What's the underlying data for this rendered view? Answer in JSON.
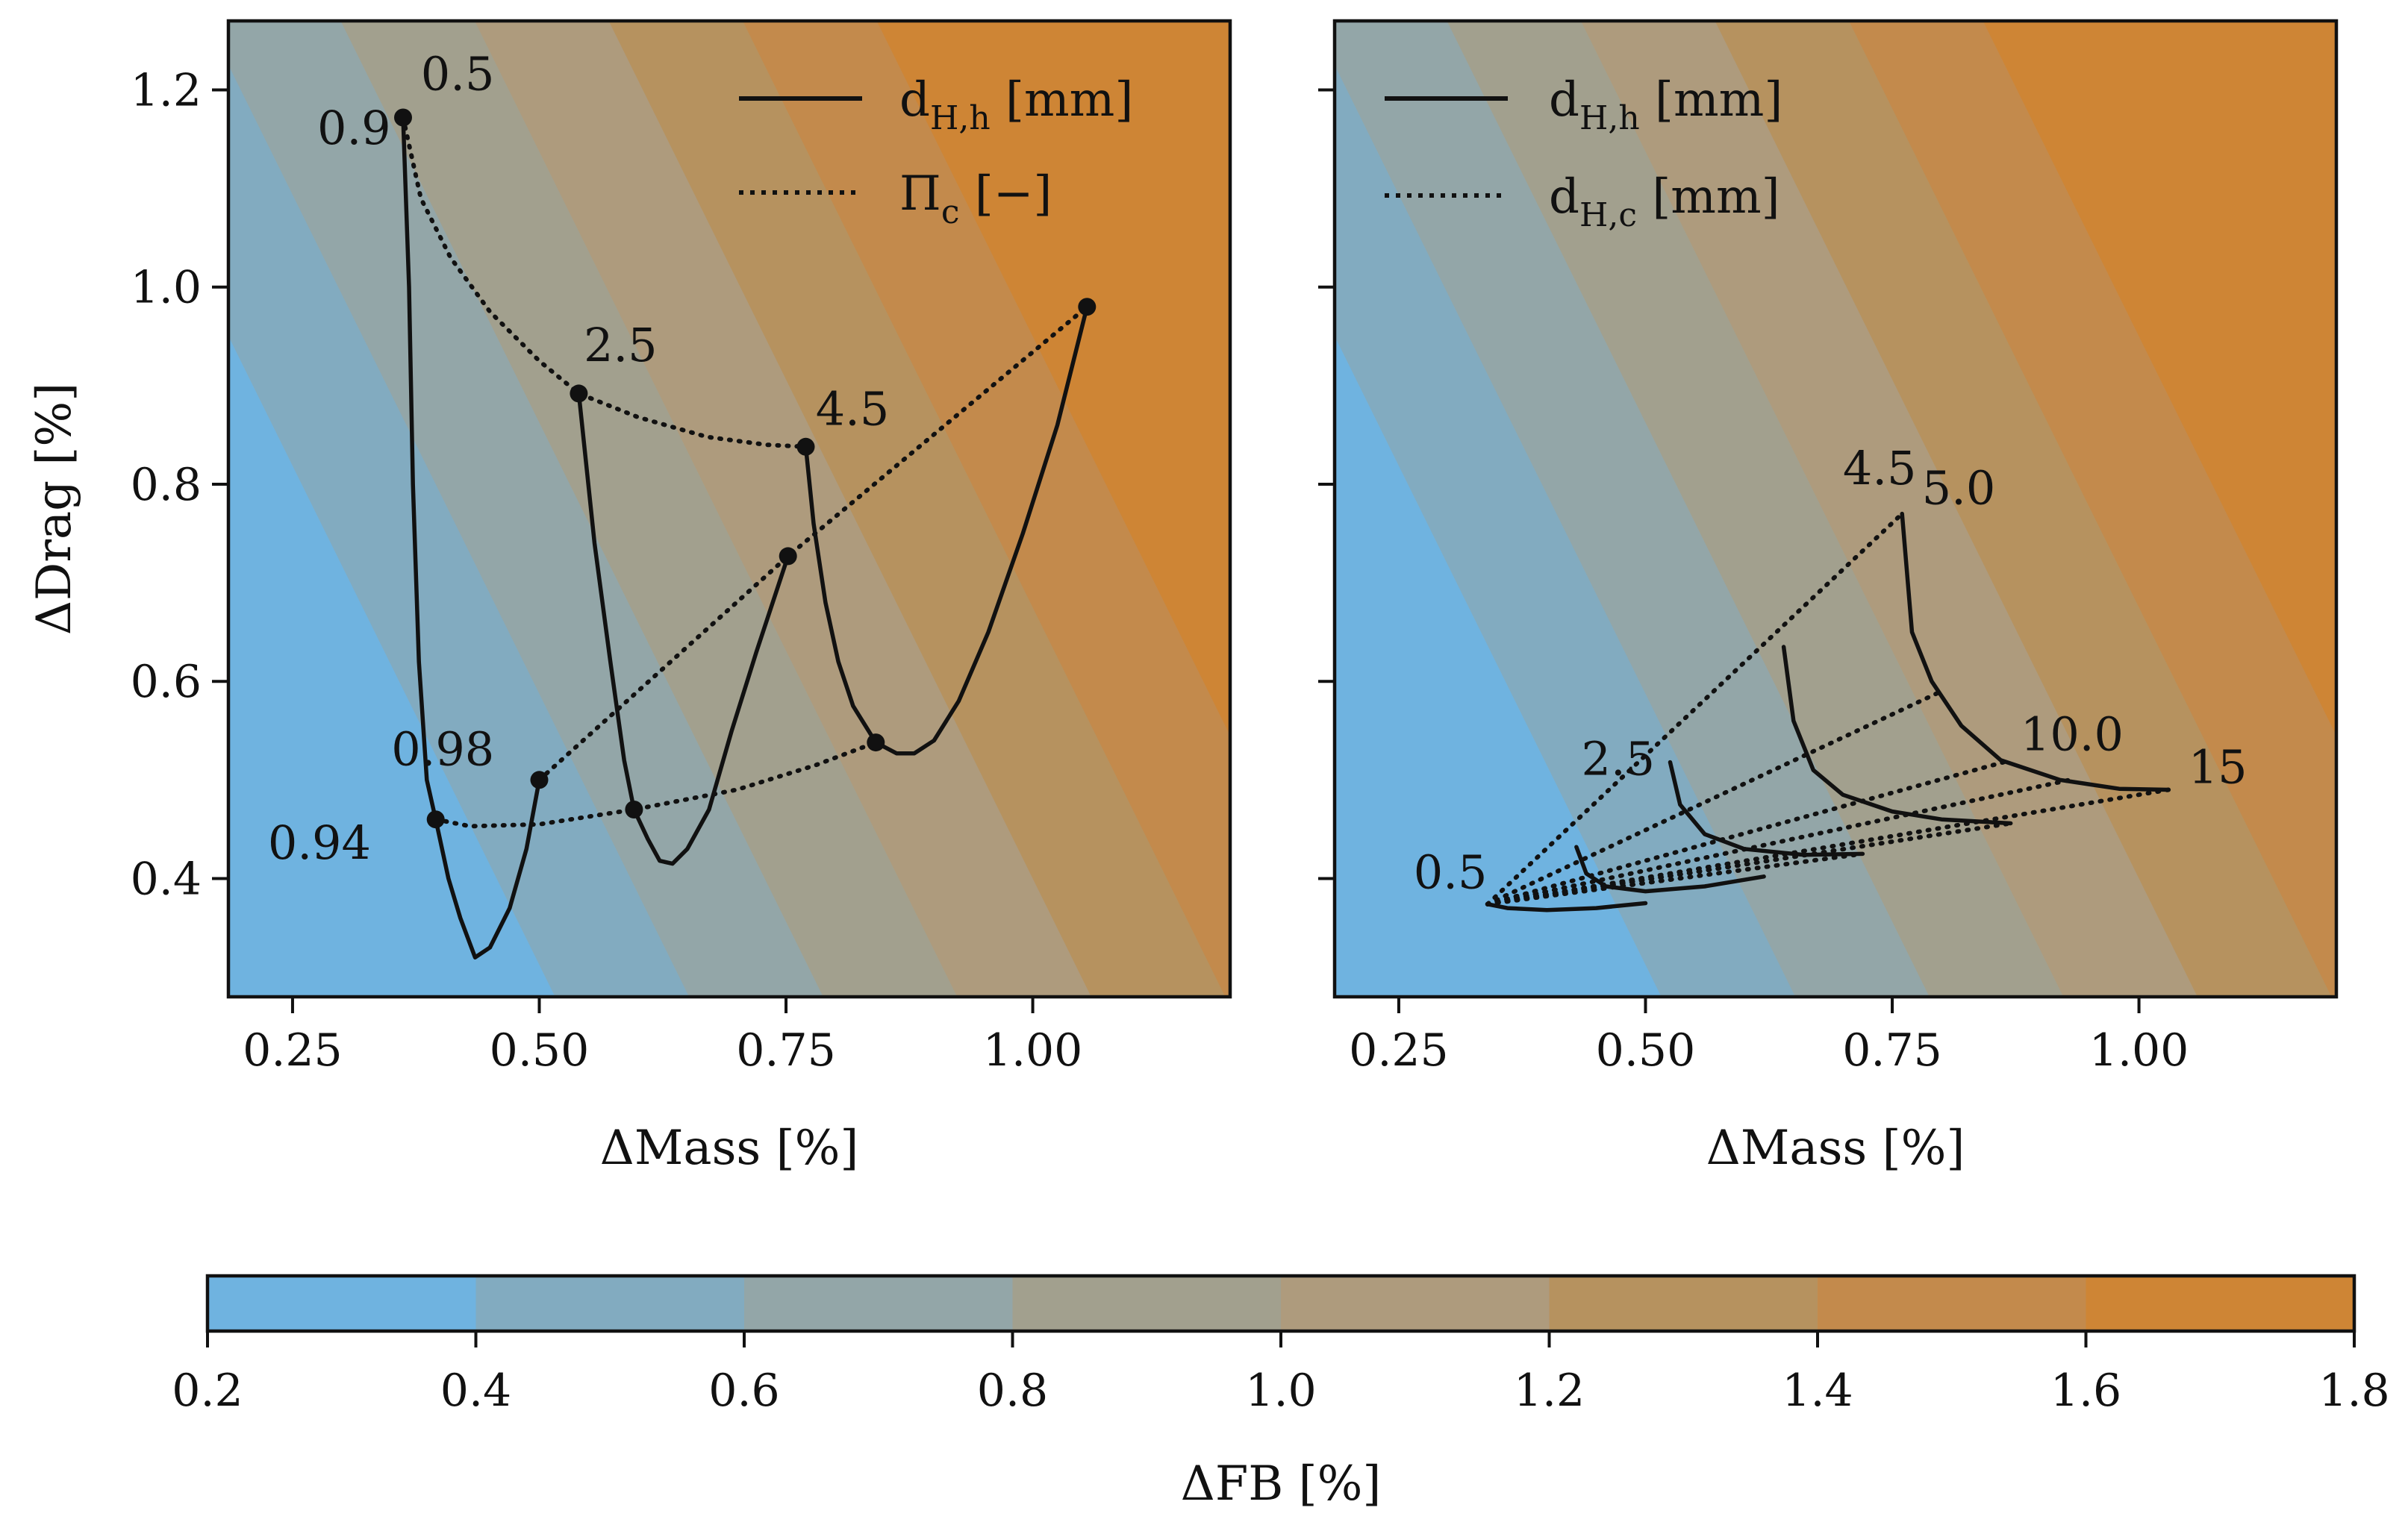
{
  "chart_data": [
    {
      "type": "contour-line",
      "panel": "left",
      "xlabel": "ΔMass [%]",
      "ylabel": "ΔDrag [%]",
      "xlim": [
        0.185,
        1.2
      ],
      "ylim": [
        0.28,
        1.27
      ],
      "xticks": [
        0.25,
        0.5,
        0.75,
        1.0
      ],
      "xtick_labels": [
        "0.25",
        "0.50",
        "0.75",
        "1.00"
      ],
      "yticks": [
        0.4,
        0.6,
        0.8,
        1.0,
        1.2
      ],
      "ytick_labels": [
        "0.4",
        "0.6",
        "0.8",
        "1.0",
        "1.2"
      ],
      "legend": {
        "position": "top-right",
        "entries": [
          {
            "style": "solid",
            "main": "d",
            "sub": "H,h",
            "unit": " [mm]"
          },
          {
            "style": "dotted",
            "main": "Π",
            "sub": "c",
            "unit": " [−]"
          }
        ]
      },
      "background_field": {
        "name": "ΔFB [%]",
        "model": "FB = 1.4727*ΔMass + 0.7273*ΔDrag - 0.5636"
      },
      "series": [
        {
          "style": "solid",
          "points": [
            [
              0.362,
              1.172
            ],
            [
              0.368,
              1.0
            ],
            [
              0.372,
              0.8
            ],
            [
              0.378,
              0.62
            ],
            [
              0.386,
              0.5
            ],
            [
              0.395,
              0.46
            ],
            [
              0.408,
              0.4
            ],
            [
              0.42,
              0.36
            ],
            [
              0.435,
              0.32
            ],
            [
              0.45,
              0.33
            ],
            [
              0.47,
              0.37
            ],
            [
              0.487,
              0.43
            ],
            [
              0.5,
              0.5
            ]
          ]
        },
        {
          "style": "solid",
          "points": [
            [
              0.54,
              0.892
            ],
            [
              0.556,
              0.74
            ],
            [
              0.572,
              0.62
            ],
            [
              0.586,
              0.52
            ],
            [
              0.596,
              0.47
            ],
            [
              0.61,
              0.44
            ],
            [
              0.622,
              0.418
            ],
            [
              0.635,
              0.415
            ],
            [
              0.65,
              0.43
            ],
            [
              0.672,
              0.47
            ],
            [
              0.695,
              0.55
            ],
            [
              0.72,
              0.63
            ],
            [
              0.752,
              0.727
            ]
          ]
        },
        {
          "style": "solid",
          "points": [
            [
              0.77,
              0.838
            ],
            [
              0.778,
              0.76
            ],
            [
              0.79,
              0.68
            ],
            [
              0.803,
              0.62
            ],
            [
              0.818,
              0.575
            ],
            [
              0.841,
              0.538
            ],
            [
              0.862,
              0.527
            ],
            [
              0.88,
              0.527
            ],
            [
              0.9,
              0.54
            ],
            [
              0.925,
              0.58
            ],
            [
              0.955,
              0.65
            ],
            [
              0.99,
              0.75
            ],
            [
              1.025,
              0.86
            ],
            [
              1.055,
              0.98
            ]
          ]
        },
        {
          "style": "dotted",
          "points": [
            [
              0.362,
              1.172
            ],
            [
              0.38,
              1.09
            ],
            [
              0.41,
              1.03
            ],
            [
              0.45,
              0.975
            ],
            [
              0.5,
              0.925
            ],
            [
              0.54,
              0.892
            ],
            [
              0.6,
              0.868
            ],
            [
              0.67,
              0.848
            ],
            [
              0.73,
              0.84
            ],
            [
              0.77,
              0.838
            ]
          ]
        },
        {
          "style": "dotted",
          "points": [
            [
              0.5,
              0.5
            ],
            [
              0.752,
              0.727
            ],
            [
              1.055,
              0.98
            ]
          ]
        },
        {
          "style": "dotted",
          "points": [
            [
              0.395,
              0.46
            ],
            [
              0.43,
              0.453
            ],
            [
              0.5,
              0.455
            ],
            [
              0.596,
              0.47
            ],
            [
              0.7,
              0.49
            ],
            [
              0.78,
              0.515
            ],
            [
              0.841,
              0.538
            ]
          ]
        }
      ],
      "markers": [
        [
          0.362,
          1.172
        ],
        [
          0.54,
          0.892
        ],
        [
          0.77,
          0.838
        ],
        [
          1.055,
          0.98
        ],
        [
          0.752,
          0.727
        ],
        [
          0.5,
          0.5
        ],
        [
          0.395,
          0.46
        ],
        [
          0.596,
          0.47
        ],
        [
          0.841,
          0.538
        ]
      ],
      "annotations": [
        {
          "text": "0.5",
          "x": 0.38,
          "y": 1.2
        },
        {
          "text": "0.9",
          "x": 0.275,
          "y": 1.145
        },
        {
          "text": "2.5",
          "x": 0.545,
          "y": 0.925
        },
        {
          "text": "4.5",
          "x": 0.78,
          "y": 0.86
        },
        {
          "text": "0.98",
          "x": 0.35,
          "y": 0.515
        },
        {
          "text": "0.94",
          "x": 0.225,
          "y": 0.42
        }
      ]
    },
    {
      "type": "contour-line",
      "panel": "right",
      "xlabel": "ΔMass [%]",
      "ylabel": "",
      "xlim": [
        0.185,
        1.2
      ],
      "ylim": [
        0.28,
        1.27
      ],
      "xticks": [
        0.25,
        0.5,
        0.75,
        1.0
      ],
      "xtick_labels": [
        "0.25",
        "0.50",
        "0.75",
        "1.00"
      ],
      "yticks": [
        0.4,
        0.6,
        0.8,
        1.0,
        1.2
      ],
      "ytick_labels": [],
      "legend": {
        "position": "top-left",
        "entries": [
          {
            "style": "solid",
            "main": "d",
            "sub": "H,h",
            "unit": " [mm]"
          },
          {
            "style": "dotted",
            "main": "d",
            "sub": "H,c",
            "unit": " [mm]"
          }
        ]
      },
      "background_field": {
        "name": "ΔFB [%]",
        "model": "FB = 1.4727*ΔMass + 0.7273*ΔDrag - 0.5636"
      },
      "series": [
        {
          "style": "solid",
          "points": [
            [
              0.43,
              0.432
            ],
            [
              0.44,
              0.405
            ],
            [
              0.46,
              0.392
            ],
            [
              0.5,
              0.387
            ],
            [
              0.56,
              0.392
            ],
            [
              0.62,
              0.402
            ]
          ]
        },
        {
          "style": "solid",
          "points": [
            [
              0.525,
              0.518
            ],
            [
              0.535,
              0.475
            ],
            [
              0.56,
              0.445
            ],
            [
              0.6,
              0.43
            ],
            [
              0.66,
              0.424
            ],
            [
              0.72,
              0.425
            ]
          ]
        },
        {
          "style": "solid",
          "points": [
            [
              0.64,
              0.635
            ],
            [
              0.65,
              0.56
            ],
            [
              0.67,
              0.51
            ],
            [
              0.7,
              0.485
            ],
            [
              0.75,
              0.468
            ],
            [
              0.8,
              0.46
            ],
            [
              0.87,
              0.456
            ]
          ]
        },
        {
          "style": "solid",
          "points": [
            [
              0.76,
              0.77
            ],
            [
              0.77,
              0.65
            ],
            [
              0.79,
              0.6
            ],
            [
              0.82,
              0.555
            ],
            [
              0.86,
              0.52
            ],
            [
              0.92,
              0.5
            ],
            [
              0.98,
              0.491
            ],
            [
              1.03,
              0.49
            ]
          ]
        },
        {
          "style": "solid",
          "points": [
            [
              0.34,
              0.374
            ],
            [
              0.36,
              0.37
            ],
            [
              0.4,
              0.368
            ],
            [
              0.45,
              0.37
            ],
            [
              0.5,
              0.375
            ]
          ]
        },
        {
          "style": "dotted",
          "points": [
            [
              0.34,
              0.374
            ],
            [
              0.76,
              0.77
            ]
          ]
        },
        {
          "style": "dotted",
          "points": [
            [
              0.34,
              0.374
            ],
            [
              0.8,
              0.59
            ]
          ]
        },
        {
          "style": "dotted",
          "points": [
            [
              0.34,
              0.374
            ],
            [
              0.87,
              0.52
            ]
          ]
        },
        {
          "style": "dotted",
          "points": [
            [
              0.34,
              0.374
            ],
            [
              0.93,
              0.5
            ]
          ]
        },
        {
          "style": "dotted",
          "points": [
            [
              0.34,
              0.374
            ],
            [
              1.03,
              0.49
            ]
          ]
        },
        {
          "style": "dotted",
          "points": [
            [
              0.34,
              0.374
            ],
            [
              0.87,
              0.456
            ]
          ]
        },
        {
          "style": "dotted",
          "points": [
            [
              0.34,
              0.374
            ],
            [
              0.72,
              0.425
            ]
          ]
        }
      ],
      "markers": [],
      "annotations": [
        {
          "text": "4.5",
          "x": 0.7,
          "y": 0.8
        },
        {
          "text": "5.0",
          "x": 0.78,
          "y": 0.78
        },
        {
          "text": "2.5",
          "x": 0.435,
          "y": 0.505
        },
        {
          "text": "10.0",
          "x": 0.88,
          "y": 0.53
        },
        {
          "text": "15",
          "x": 1.05,
          "y": 0.497
        },
        {
          "text": "0.5",
          "x": 0.265,
          "y": 0.39
        }
      ]
    }
  ],
  "colorbar": {
    "label": "ΔFB [%]",
    "levels": [
      0.2,
      0.4,
      0.6,
      0.8,
      1.0,
      1.2,
      1.4,
      1.6,
      1.8
    ],
    "tick_labels": [
      "0.2",
      "0.4",
      "0.6",
      "0.8",
      "1.0",
      "1.2",
      "1.4",
      "1.6",
      "1.8"
    ],
    "colors": [
      "#6fb3e0",
      "#82abc0",
      "#93a6a8",
      "#a2a08e",
      "#ae9b7d",
      "#b6925f",
      "#c38a4c",
      "#ce8535"
    ]
  }
}
